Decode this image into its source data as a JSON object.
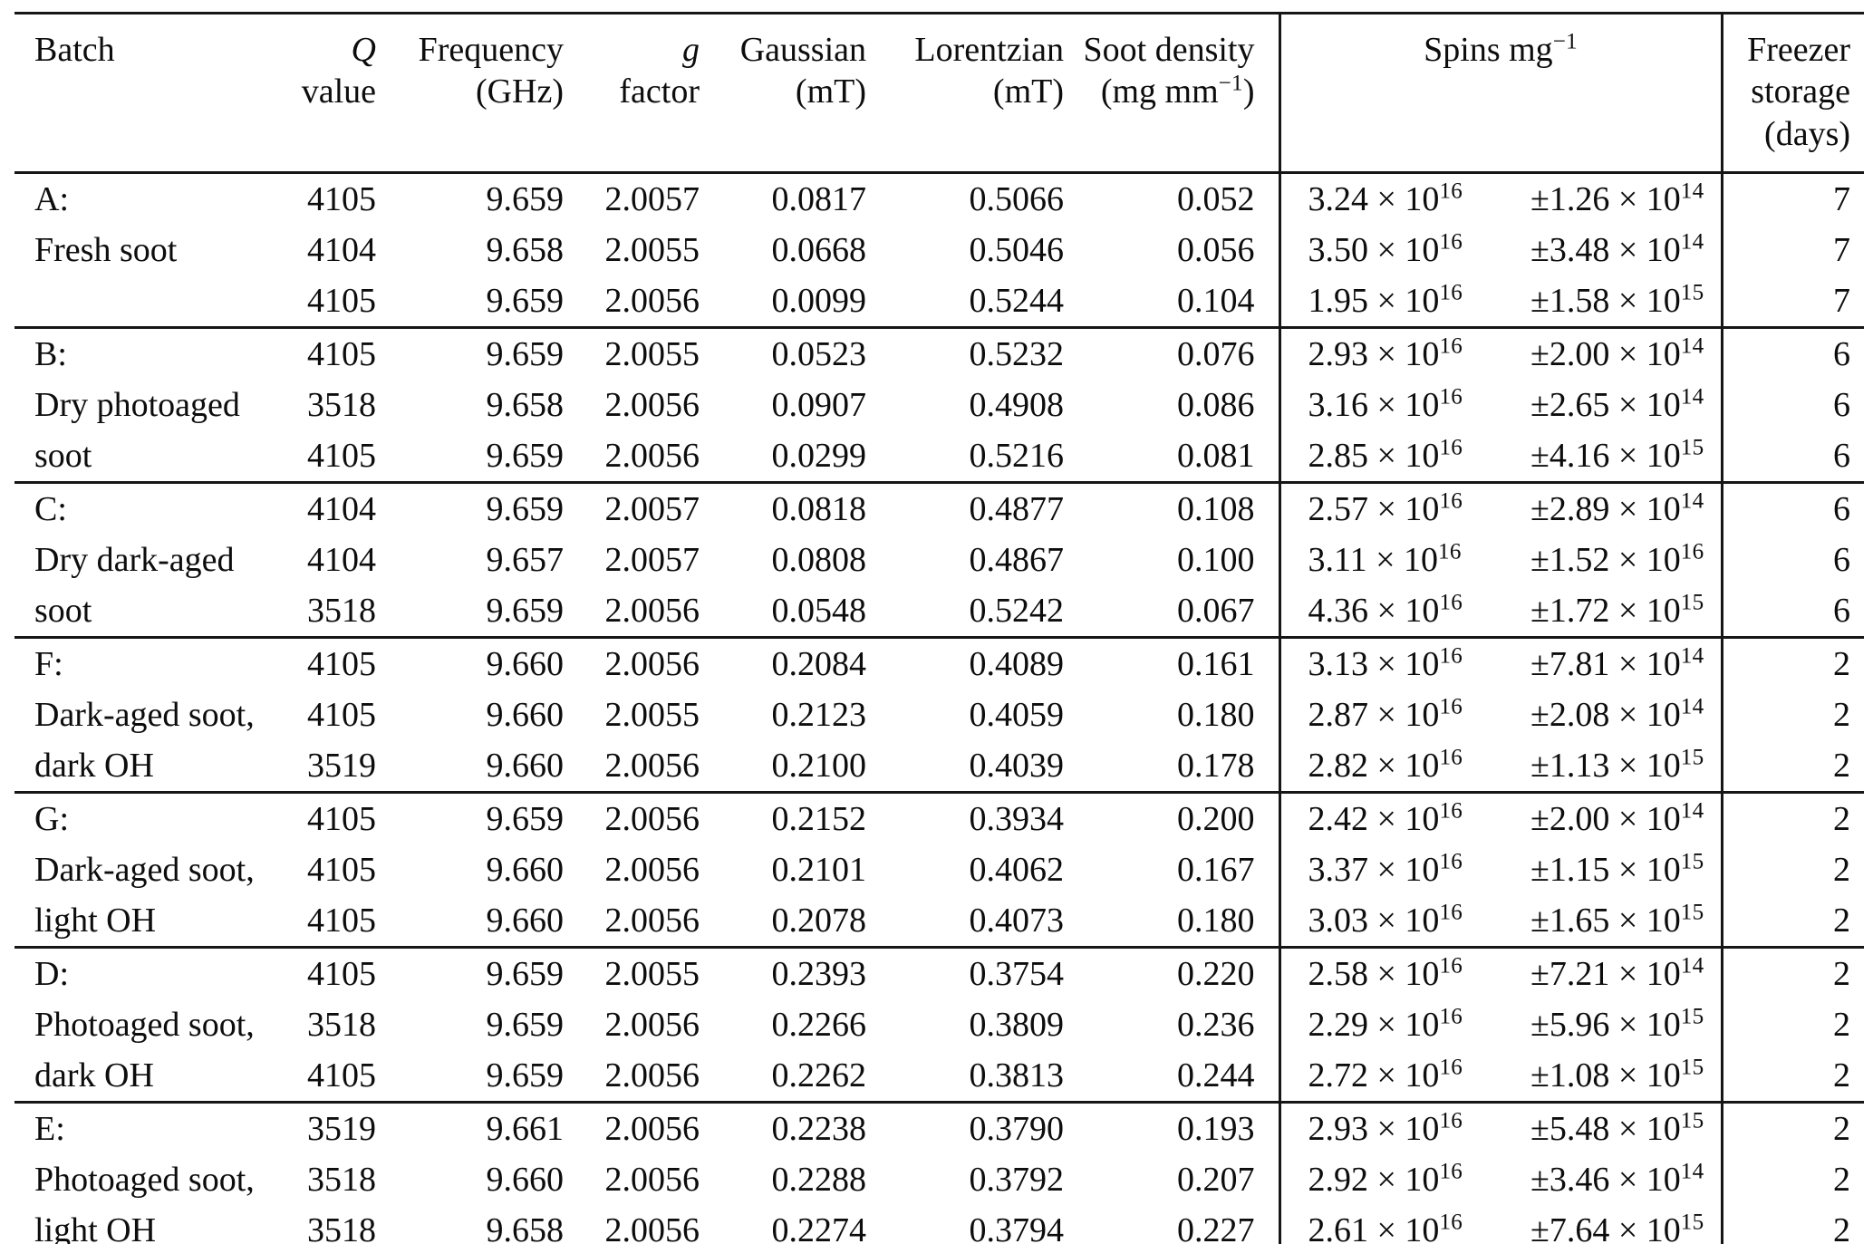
{
  "table": {
    "header": {
      "batch": "Batch",
      "q_line1": "Q",
      "q_line2": "value",
      "frequency_line1": "Frequency",
      "frequency_line2": "(GHz)",
      "g_line1": "g",
      "g_line2": "factor",
      "gaussian_line1": "Gaussian",
      "gaussian_line2": "(mT)",
      "lorentzian_line1": "Lorentzian",
      "lorentzian_line2": "(mT)",
      "soot_line1": "Soot density",
      "soot_line2_base": "(mg mm",
      "soot_line2_sup": "−1",
      "soot_line2_close": ")",
      "spins_base": "Spins mg",
      "spins_sup": "−1",
      "freezer_line1": "Freezer",
      "freezer_line2": "storage",
      "freezer_line3": "(days)"
    },
    "groups": [
      {
        "label_lines": [
          "A:",
          "Fresh soot",
          ""
        ],
        "rows": [
          {
            "q": "4105",
            "freq": "9.659",
            "g": "2.0057",
            "gauss": "0.0817",
            "lorentz": "0.5066",
            "soot": "0.052",
            "spins": {
              "base": "3.24 × 10",
              "sup": "16"
            },
            "err": {
              "base": "±1.26 × 10",
              "sup": "14"
            },
            "days": "7"
          },
          {
            "q": "4104",
            "freq": "9.658",
            "g": "2.0055",
            "gauss": "0.0668",
            "lorentz": "0.5046",
            "soot": "0.056",
            "spins": {
              "base": "3.50 × 10",
              "sup": "16"
            },
            "err": {
              "base": "±3.48 × 10",
              "sup": "14"
            },
            "days": "7"
          },
          {
            "q": "4105",
            "freq": "9.659",
            "g": "2.0056",
            "gauss": "0.0099",
            "lorentz": "0.5244",
            "soot": "0.104",
            "spins": {
              "base": "1.95 × 10",
              "sup": "16"
            },
            "err": {
              "base": "±1.58 × 10",
              "sup": "15"
            },
            "days": "7"
          }
        ]
      },
      {
        "label_lines": [
          "B:",
          "Dry photoaged",
          "soot"
        ],
        "rows": [
          {
            "q": "4105",
            "freq": "9.659",
            "g": "2.0055",
            "gauss": "0.0523",
            "lorentz": "0.5232",
            "soot": "0.076",
            "spins": {
              "base": "2.93 × 10",
              "sup": "16"
            },
            "err": {
              "base": "±2.00 × 10",
              "sup": "14"
            },
            "days": "6"
          },
          {
            "q": "3518",
            "freq": "9.658",
            "g": "2.0056",
            "gauss": "0.0907",
            "lorentz": "0.4908",
            "soot": "0.086",
            "spins": {
              "base": "3.16 × 10",
              "sup": "16"
            },
            "err": {
              "base": "±2.65 × 10",
              "sup": "14"
            },
            "days": "6"
          },
          {
            "q": "4105",
            "freq": "9.659",
            "g": "2.0056",
            "gauss": "0.0299",
            "lorentz": "0.5216",
            "soot": "0.081",
            "spins": {
              "base": "2.85 × 10",
              "sup": "16"
            },
            "err": {
              "base": "±4.16 × 10",
              "sup": "15"
            },
            "days": "6"
          }
        ]
      },
      {
        "label_lines": [
          "C:",
          "Dry dark-aged",
          "soot"
        ],
        "rows": [
          {
            "q": "4104",
            "freq": "9.659",
            "g": "2.0057",
            "gauss": "0.0818",
            "lorentz": "0.4877",
            "soot": "0.108",
            "spins": {
              "base": "2.57 × 10",
              "sup": "16"
            },
            "err": {
              "base": "±2.89 × 10",
              "sup": "14"
            },
            "days": "6"
          },
          {
            "q": "4104",
            "freq": "9.657",
            "g": "2.0057",
            "gauss": "0.0808",
            "lorentz": "0.4867",
            "soot": "0.100",
            "spins": {
              "base": "3.11 × 10",
              "sup": "16"
            },
            "err": {
              "base": "±1.52 × 10",
              "sup": "16"
            },
            "days": "6"
          },
          {
            "q": "3518",
            "freq": "9.659",
            "g": "2.0056",
            "gauss": "0.0548",
            "lorentz": "0.5242",
            "soot": "0.067",
            "spins": {
              "base": "4.36 × 10",
              "sup": "16"
            },
            "err": {
              "base": "±1.72 × 10",
              "sup": "15"
            },
            "days": "6"
          }
        ]
      },
      {
        "label_lines": [
          "F:",
          "Dark-aged soot,",
          "dark OH"
        ],
        "rows": [
          {
            "q": "4105",
            "freq": "9.660",
            "g": "2.0056",
            "gauss": "0.2084",
            "lorentz": "0.4089",
            "soot": "0.161",
            "spins": {
              "base": "3.13 × 10",
              "sup": "16"
            },
            "err": {
              "base": "±7.81 × 10",
              "sup": "14"
            },
            "days": "2"
          },
          {
            "q": "4105",
            "freq": "9.660",
            "g": "2.0055",
            "gauss": "0.2123",
            "lorentz": "0.4059",
            "soot": "0.180",
            "spins": {
              "base": "2.87 × 10",
              "sup": "16"
            },
            "err": {
              "base": "±2.08 × 10",
              "sup": "14"
            },
            "days": "2"
          },
          {
            "q": "3519",
            "freq": "9.660",
            "g": "2.0056",
            "gauss": "0.2100",
            "lorentz": "0.4039",
            "soot": "0.178",
            "spins": {
              "base": "2.82 × 10",
              "sup": "16"
            },
            "err": {
              "base": "±1.13 × 10",
              "sup": "15"
            },
            "days": "2"
          }
        ]
      },
      {
        "label_lines": [
          "G:",
          "Dark-aged soot,",
          "light OH"
        ],
        "rows": [
          {
            "q": "4105",
            "freq": "9.659",
            "g": "2.0056",
            "gauss": "0.2152",
            "lorentz": "0.3934",
            "soot": "0.200",
            "spins": {
              "base": "2.42 × 10",
              "sup": "16"
            },
            "err": {
              "base": "±2.00 × 10",
              "sup": "14"
            },
            "days": "2"
          },
          {
            "q": "4105",
            "freq": "9.660",
            "g": "2.0056",
            "gauss": "0.2101",
            "lorentz": "0.4062",
            "soot": "0.167",
            "spins": {
              "base": "3.37 × 10",
              "sup": "16"
            },
            "err": {
              "base": "±1.15 × 10",
              "sup": "15"
            },
            "days": "2"
          },
          {
            "q": "4105",
            "freq": "9.660",
            "g": "2.0056",
            "gauss": "0.2078",
            "lorentz": "0.4073",
            "soot": "0.180",
            "spins": {
              "base": "3.03 × 10",
              "sup": "16"
            },
            "err": {
              "base": "±1.65 × 10",
              "sup": "15"
            },
            "days": "2"
          }
        ]
      },
      {
        "label_lines": [
          "D:",
          "Photoaged soot,",
          "dark OH"
        ],
        "rows": [
          {
            "q": "4105",
            "freq": "9.659",
            "g": "2.0055",
            "gauss": "0.2393",
            "lorentz": "0.3754",
            "soot": "0.220",
            "spins": {
              "base": "2.58 × 10",
              "sup": "16"
            },
            "err": {
              "base": "±7.21 × 10",
              "sup": "14"
            },
            "days": "2"
          },
          {
            "q": "3518",
            "freq": "9.659",
            "g": "2.0056",
            "gauss": "0.2266",
            "lorentz": "0.3809",
            "soot": "0.236",
            "spins": {
              "base": "2.29 × 10",
              "sup": "16"
            },
            "err": {
              "base": "±5.96 × 10",
              "sup": "15"
            },
            "days": "2"
          },
          {
            "q": "4105",
            "freq": "9.659",
            "g": "2.0056",
            "gauss": "0.2262",
            "lorentz": "0.3813",
            "soot": "0.244",
            "spins": {
              "base": "2.72 × 10",
              "sup": "16"
            },
            "err": {
              "base": "±1.08 × 10",
              "sup": "15"
            },
            "days": "2"
          }
        ]
      },
      {
        "label_lines": [
          "E:",
          "Photoaged soot,",
          "light OH"
        ],
        "rows": [
          {
            "q": "3519",
            "freq": "9.661",
            "g": "2.0056",
            "gauss": "0.2238",
            "lorentz": "0.3790",
            "soot": "0.193",
            "spins": {
              "base": "2.93 × 10",
              "sup": "16"
            },
            "err": {
              "base": "±5.48 × 10",
              "sup": "15"
            },
            "days": "2"
          },
          {
            "q": "3518",
            "freq": "9.660",
            "g": "2.0056",
            "gauss": "0.2288",
            "lorentz": "0.3792",
            "soot": "0.207",
            "spins": {
              "base": "2.92 × 10",
              "sup": "16"
            },
            "err": {
              "base": "±3.46 × 10",
              "sup": "14"
            },
            "days": "2"
          },
          {
            "q": "3518",
            "freq": "9.658",
            "g": "2.0056",
            "gauss": "0.2274",
            "lorentz": "0.3794",
            "soot": "0.227",
            "spins": {
              "base": "2.61 × 10",
              "sup": "16"
            },
            "err": {
              "base": "±7.64 × 10",
              "sup": "15"
            },
            "days": "2"
          }
        ]
      }
    ]
  }
}
